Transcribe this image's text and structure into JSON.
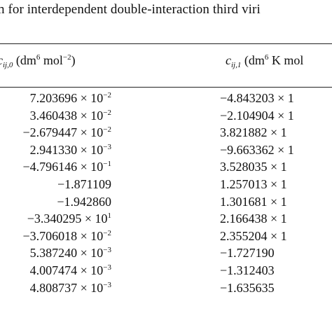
{
  "caption": "n for interdependent double-interaction third viri",
  "header": {
    "col0": {
      "symbol": "c",
      "subscript": "ij,0",
      "unit_pre": " (dm",
      "unit_exp": "6",
      "unit_mid": " mol",
      "unit_exp2": "−2",
      "unit_post": ")"
    },
    "col1": {
      "symbol": "c",
      "subscript": "ij,1",
      "unit_pre": " (dm",
      "unit_exp": "6",
      "unit_mid": " K mol"
    }
  },
  "rows": [
    {
      "c0": "7.203696 × 10",
      "c0_exp": "−2",
      "c1": "−4.843203 × 1"
    },
    {
      "c0": "3.460438 × 10",
      "c0_exp": "−2",
      "c1": "−2.104904 × 1"
    },
    {
      "c0": "−2.679447 × 10",
      "c0_exp": "−2",
      "c1": "3.821882 × 1"
    },
    {
      "c0": "2.941330 × 10",
      "c0_exp": "−3",
      "c1": "−9.663362 × 1"
    },
    {
      "c0": "−4.796146 × 10",
      "c0_exp": "−1",
      "c1": "3.528035 × 1"
    },
    {
      "c0": "−1.871109",
      "c0_exp": "",
      "c1": "1.257013 × 1"
    },
    {
      "c0": "−1.942860",
      "c0_exp": "",
      "c1": "1.301681 × 1"
    },
    {
      "c0": "−3.340295 × 10",
      "c0_exp": "1",
      "c1": "2.166438 × 1"
    },
    {
      "c0": "−3.706018 × 10",
      "c0_exp": "−2",
      "c1": "2.355204 × 1"
    },
    {
      "c0": "5.387240 × 10",
      "c0_exp": "−3",
      "c1": "−1.727190"
    },
    {
      "c0": "4.007474 × 10",
      "c0_exp": "−3",
      "c1": "−1.312403"
    },
    {
      "c0": "4.808737 × 10",
      "c0_exp": "−3",
      "c1": "−1.635635"
    }
  ]
}
